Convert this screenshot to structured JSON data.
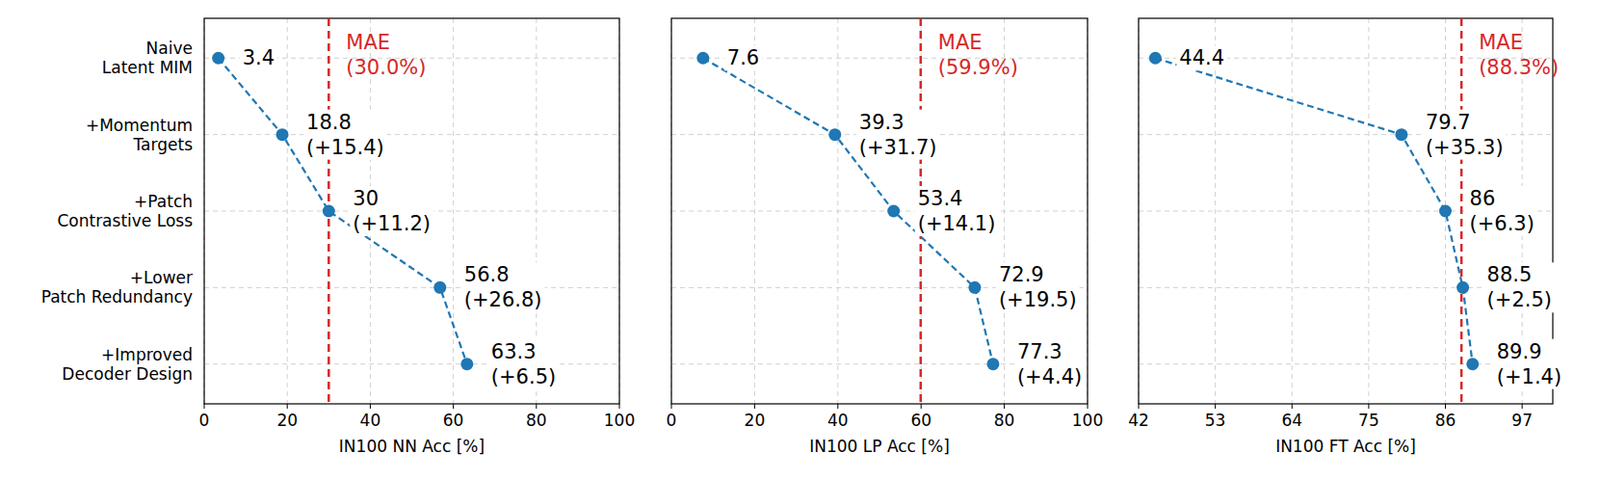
{
  "chart_data": [
    {
      "type": "line",
      "orientation": "horizontal",
      "categories": [
        "Naive\nLatent MIM",
        "+Momentum\nTargets",
        "+Patch\nContrastive Loss",
        "+Lower\nPatch Redundancy",
        "+Improved\nDecoder Design"
      ],
      "values": [
        3.4,
        18.8,
        30,
        56.8,
        63.3
      ],
      "value_labels": [
        "3.4",
        "18.8\n(+15.4)",
        "30\n(+11.2)",
        "56.8\n(+26.8)",
        "63.3\n(+6.5)"
      ],
      "data_labels": true,
      "color": "#1f77b4",
      "marker": "circle",
      "line_style": "dashed",
      "x_label": "IN100 NN Acc [%]",
      "xlim": [
        0,
        100
      ],
      "xticks": [
        0,
        20,
        40,
        60,
        80,
        100
      ],
      "grid": true,
      "annotations": [
        {
          "text": "MAE\n(30.0%)",
          "x": 30,
          "color": "#d62728"
        }
      ]
    },
    {
      "type": "line",
      "orientation": "horizontal",
      "categories": [
        "Naive\nLatent MIM",
        "+Momentum\nTargets",
        "+Patch\nContrastive Loss",
        "+Lower\nPatch Redundancy",
        "+Improved\nDecoder Design"
      ],
      "values": [
        7.6,
        39.3,
        53.4,
        72.9,
        77.3
      ],
      "value_labels": [
        "7.6",
        "39.3\n(+31.7)",
        "53.4\n(+14.1)",
        "72.9\n(+19.5)",
        "77.3\n(+4.4)"
      ],
      "data_labels": true,
      "tick_labels": "x",
      "color": "#1f77b4",
      "marker": "circle",
      "line_style": "dashed",
      "x_label": "IN100 LP Acc [%]",
      "xlim": [
        0,
        100
      ],
      "xticks": [
        0,
        20,
        40,
        60,
        80,
        100
      ],
      "grid": true,
      "annotations": [
        {
          "text": "MAE\n(59.9%)",
          "x": 59.9,
          "color": "#d62728"
        }
      ]
    },
    {
      "type": "line",
      "orientation": "horizontal",
      "categories": [
        "Naive\nLatent MIM",
        "+Momentum\nTargets",
        "+Patch\nContrastive Loss",
        "+Lower\nPatch Redundancy",
        "+Improved\nDecoder Design"
      ],
      "values": [
        44.4,
        79.7,
        86,
        88.5,
        89.9
      ],
      "value_labels": [
        "44.4",
        "79.7\n(+35.3)",
        "86\n(+6.3)",
        "88.5\n(+2.5)",
        "89.9\n(+1.4)"
      ],
      "data_labels": true,
      "tick_labels": "x",
      "color": "#1f77b4",
      "marker": "circle",
      "line_style": "dashed",
      "x_label": "IN100 FT Acc [%]",
      "xlim": [
        42,
        101.4
      ],
      "xticks": [
        42,
        53,
        64,
        75,
        86,
        97
      ],
      "grid": true,
      "annotations": [
        {
          "text": "MAE\n(88.3%)",
          "x": 88.3,
          "color": "#d62728"
        }
      ]
    }
  ]
}
